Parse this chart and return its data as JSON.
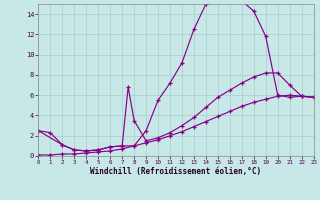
{
  "xlabel": "Windchill (Refroidissement éolien,°C)",
  "bg_color": "#c8e8e8",
  "line_color": "#880088",
  "grid_color": "#a8cccc",
  "xlim": [
    0,
    23
  ],
  "ylim": [
    0,
    15
  ],
  "yticks": [
    0,
    2,
    4,
    6,
    8,
    10,
    12,
    14
  ],
  "xticks": [
    0,
    1,
    2,
    3,
    4,
    5,
    6,
    7,
    8,
    9,
    10,
    11,
    12,
    13,
    14,
    15,
    16,
    17,
    18,
    19,
    20,
    21,
    22,
    23
  ],
  "line1_x": [
    0,
    1,
    2,
    3,
    4,
    5,
    6,
    7,
    8,
    9,
    10,
    11,
    12,
    13,
    14,
    15,
    16,
    17,
    18,
    19,
    20,
    21,
    22,
    23
  ],
  "line1_y": [
    2.5,
    2.3,
    1.1,
    0.6,
    0.5,
    0.6,
    0.9,
    1.0,
    1.0,
    2.5,
    5.5,
    7.2,
    9.2,
    12.5,
    15.0,
    15.2,
    15.5,
    15.3,
    14.3,
    11.8,
    6.0,
    5.8,
    5.9,
    5.8
  ],
  "line2_x": [
    0,
    2,
    3,
    4,
    5,
    6,
    7,
    7.5,
    8,
    9,
    10,
    11,
    12,
    13,
    14,
    15,
    16,
    17,
    18,
    19,
    20,
    21,
    22,
    23
  ],
  "line2_y": [
    2.5,
    1.1,
    0.6,
    0.5,
    0.6,
    0.9,
    1.0,
    6.8,
    3.5,
    1.5,
    1.8,
    2.3,
    3.0,
    3.8,
    4.8,
    5.8,
    6.5,
    7.2,
    7.8,
    8.2,
    8.2,
    7.0,
    5.9,
    5.8
  ],
  "line3_x": [
    0,
    1,
    2,
    3,
    4,
    5,
    6,
    7,
    8,
    9,
    10,
    11,
    12,
    13,
    14,
    15,
    16,
    17,
    18,
    19,
    20,
    21,
    22,
    23
  ],
  "line3_y": [
    0.1,
    0.1,
    0.2,
    0.2,
    0.3,
    0.4,
    0.5,
    0.7,
    1.0,
    1.3,
    1.6,
    2.0,
    2.4,
    2.9,
    3.4,
    3.9,
    4.4,
    4.9,
    5.3,
    5.6,
    5.9,
    6.0,
    5.9,
    5.8
  ]
}
